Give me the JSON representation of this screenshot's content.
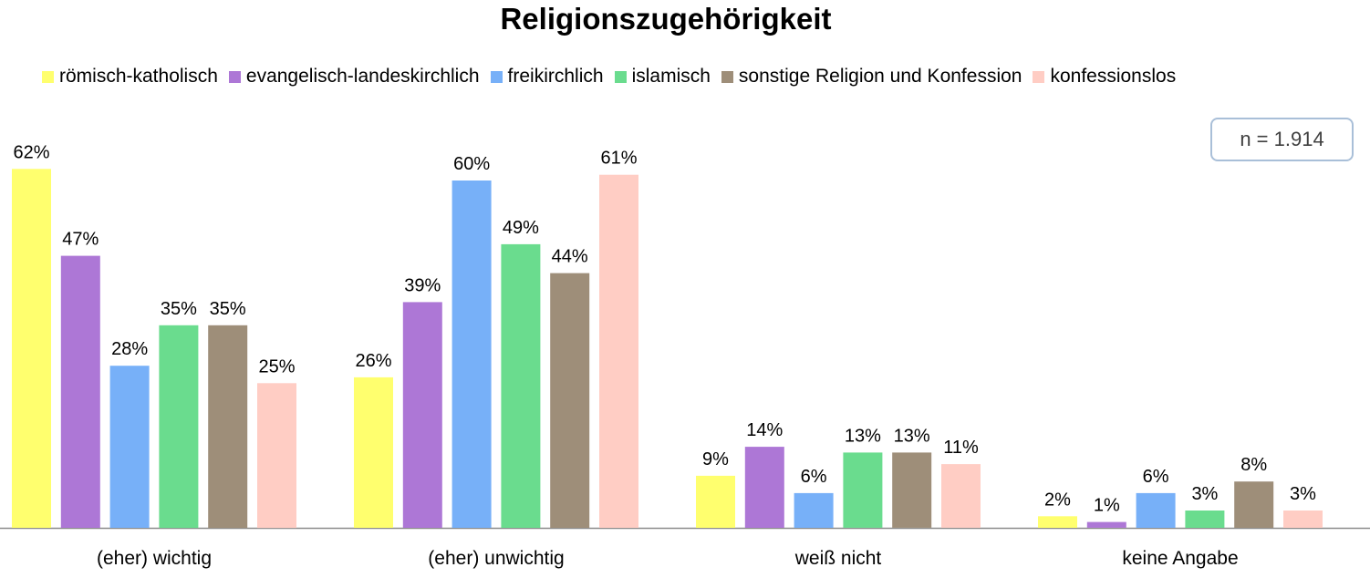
{
  "chart_data": {
    "type": "bar",
    "title": "Religionszugehörigkeit",
    "xlabel": "",
    "ylabel": "",
    "ylim": [
      0,
      62
    ],
    "grid": false,
    "legend_position": "top",
    "annotation": "n = 1.914",
    "categories": [
      "(eher) wichtig",
      "(eher) unwichtig",
      "weiß nicht",
      "keine Angabe"
    ],
    "series": [
      {
        "name": "römisch-katholisch",
        "color": "#ffff6e",
        "values": [
          62,
          26,
          9,
          2
        ],
        "labels": [
          "62%",
          "26%",
          "9%",
          "2%"
        ]
      },
      {
        "name": "evangelisch-landeskirchlich",
        "color": "#ad77d6",
        "values": [
          47,
          39,
          14,
          1
        ],
        "labels": [
          "47%",
          "39%",
          "14%",
          "1%"
        ]
      },
      {
        "name": "freikirchlich",
        "color": "#77b0f8",
        "values": [
          28,
          60,
          6,
          6
        ],
        "labels": [
          "28%",
          "60%",
          "6%",
          "6%"
        ]
      },
      {
        "name": "islamisch",
        "color": "#6adc8e",
        "values": [
          35,
          49,
          13,
          3
        ],
        "labels": [
          "35%",
          "49%",
          "13%",
          "3%"
        ]
      },
      {
        "name": "sonstige Religion und Konfession",
        "color": "#9e8e79",
        "values": [
          35,
          44,
          13,
          8
        ],
        "labels": [
          "35%",
          "44%",
          "13%",
          "8%"
        ]
      },
      {
        "name": "konfessionslos",
        "color": "#ffcdc4",
        "values": [
          25,
          61,
          11,
          3
        ],
        "labels": [
          "25%",
          "61%",
          "11%",
          "3%"
        ]
      }
    ]
  }
}
